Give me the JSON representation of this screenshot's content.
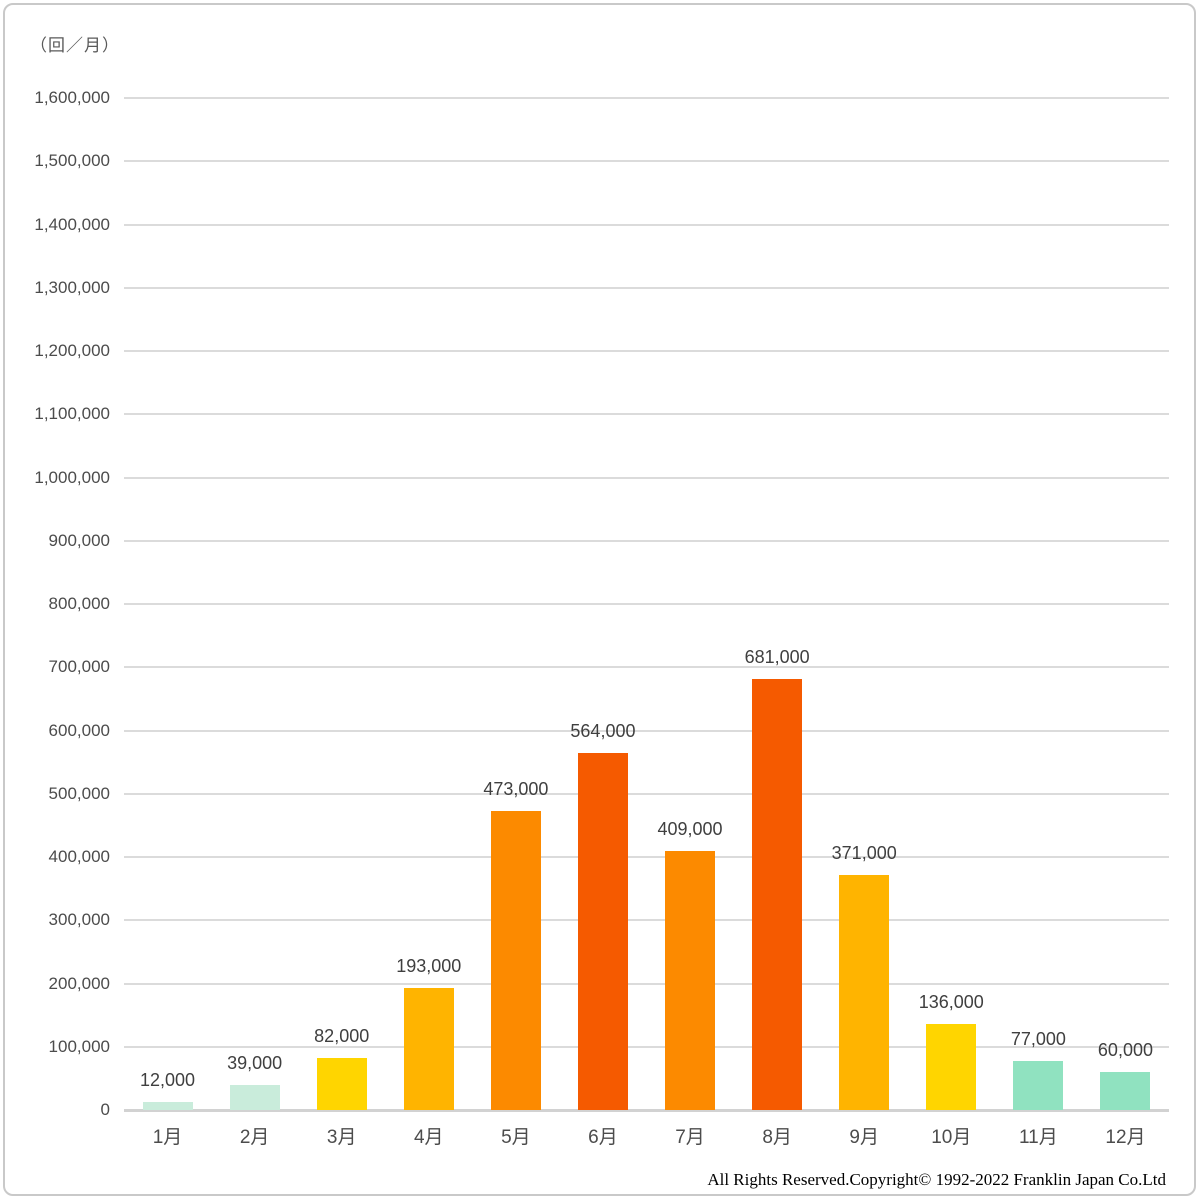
{
  "chart_data": {
    "type": "bar",
    "title": "",
    "unit_label": "（回／月）",
    "categories": [
      "1月",
      "2月",
      "3月",
      "4月",
      "5月",
      "6月",
      "7月",
      "8月",
      "9月",
      "10月",
      "11月",
      "12月"
    ],
    "values": [
      12000,
      39000,
      82000,
      193000,
      473000,
      564000,
      409000,
      681000,
      371000,
      136000,
      77000,
      60000
    ],
    "value_labels": [
      "12,000",
      "39,000",
      "82,000",
      "193,000",
      "473,000",
      "564,000",
      "409,000",
      "681,000",
      "371,000",
      "136,000",
      "77,000",
      "60,000"
    ],
    "bar_colors": [
      "#c9ecdb",
      "#c9ecdb",
      "#ffd500",
      "#ffb400",
      "#fc8a00",
      "#f55a00",
      "#fc8a00",
      "#f55a00",
      "#ffb400",
      "#ffd500",
      "#90e2c0",
      "#90e2c0"
    ],
    "ylim": [
      0,
      1600000
    ],
    "ytick_step": 100000,
    "ytick_labels": [
      "0",
      "100,000",
      "200,000",
      "300,000",
      "400,000",
      "500,000",
      "600,000",
      "700,000",
      "800,000",
      "900,000",
      "1,000,000",
      "1,100,000",
      "1,200,000",
      "1,300,000",
      "1,400,000",
      "1,500,000",
      "1,600,000"
    ],
    "grid": true,
    "legend_position": "none",
    "gridline_color": "#dbdbdb",
    "axis_text_color": "#4c4c4c"
  },
  "footer": {
    "copyright": "All Rights Reserved.Copyright©  1992-2022 Franklin Japan Co.Ltd"
  }
}
